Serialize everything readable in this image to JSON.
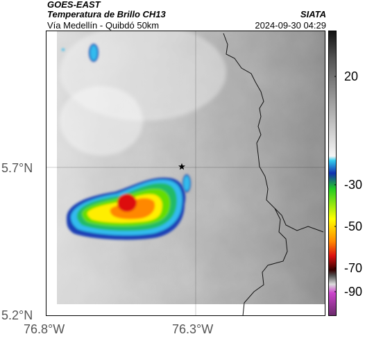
{
  "header": {
    "satellite": "GOES-EAST",
    "product": "Temperatura de Brillo CH13",
    "route": "Vía Medellín - Quibdó 50km",
    "agency": "SIATA",
    "timestamp": "2024-09-30 04:29"
  },
  "axes": {
    "lat_labels": [
      "5.7°N",
      "5.2°N"
    ],
    "lon_labels": [
      "76.8°W",
      "76.3°W"
    ]
  },
  "colorbar": {
    "labels": [
      "20",
      "-30",
      "-50",
      "-70",
      "-90"
    ],
    "colors": {
      "gray_light": "#f2f2f2",
      "gray_dark": "#1a1a1a",
      "cyan": "#33ccee",
      "blue": "#1030b0",
      "green": "#22cc22",
      "yellow": "#ffff00",
      "red": "#dd1111",
      "dark_red": "#330000",
      "magenta": "#cc44cc"
    }
  },
  "map": {
    "marker_icon": "star-icon",
    "storm_colors": [
      "#1a3fb5",
      "#33bbee",
      "#22bb66",
      "#66dd00",
      "#ffee00",
      "#ff8800",
      "#dd1111"
    ]
  }
}
